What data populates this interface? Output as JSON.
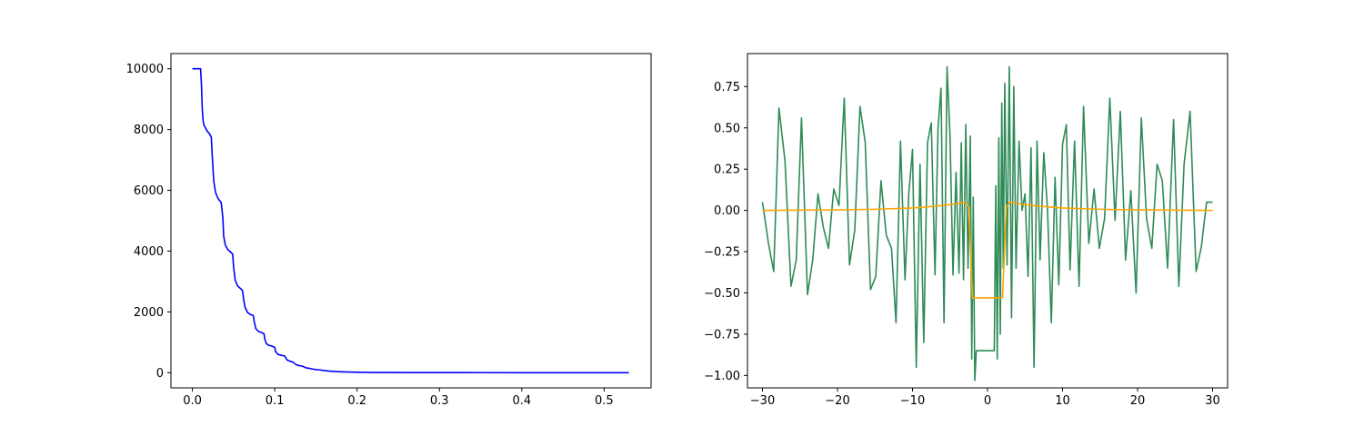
{
  "colors": {
    "left_line": "#0000ff",
    "right_line_main": "#2e8b57",
    "right_line_secondary": "#ffa500",
    "axes": "#000000",
    "background": "#ffffff"
  },
  "chart_data": [
    {
      "type": "line",
      "title": "",
      "xlabel": "",
      "ylabel": "",
      "xlim": [
        -0.026,
        0.557
      ],
      "ylim": [
        -500,
        10500
      ],
      "xticks": [
        0.0,
        0.1,
        0.2,
        0.3,
        0.4,
        0.5
      ],
      "xtick_labels": [
        "0.0",
        "0.1",
        "0.2",
        "0.3",
        "0.4",
        "0.5"
      ],
      "yticks": [
        0,
        2000,
        4000,
        6000,
        8000,
        10000
      ],
      "ytick_labels": [
        "0",
        "2000",
        "4000",
        "6000",
        "8000",
        "10000"
      ],
      "grid": false,
      "series": [
        {
          "color": "#0000ff",
          "x": [
            0.0,
            0.01,
            0.011,
            0.012,
            0.013,
            0.014,
            0.016,
            0.018,
            0.021,
            0.023,
            0.024,
            0.026,
            0.028,
            0.03,
            0.032,
            0.035,
            0.037,
            0.038,
            0.04,
            0.043,
            0.046,
            0.049,
            0.05,
            0.052,
            0.055,
            0.058,
            0.061,
            0.062,
            0.064,
            0.067,
            0.07,
            0.074,
            0.075,
            0.077,
            0.08,
            0.084,
            0.087,
            0.088,
            0.09,
            0.093,
            0.097,
            0.1,
            0.101,
            0.104,
            0.108,
            0.112,
            0.115,
            0.118,
            0.122,
            0.126,
            0.13,
            0.134,
            0.138,
            0.142,
            0.146,
            0.15,
            0.155,
            0.16,
            0.165,
            0.17,
            0.175,
            0.18,
            0.19,
            0.2,
            0.21,
            0.22,
            0.24,
            0.26,
            0.3,
            0.35,
            0.4,
            0.45,
            0.5,
            0.53
          ],
          "y": [
            10000,
            10000,
            9500,
            8700,
            8300,
            8150,
            8050,
            7950,
            7850,
            7750,
            7200,
            6300,
            5950,
            5800,
            5700,
            5600,
            5100,
            4500,
            4200,
            4050,
            3980,
            3900,
            3500,
            3050,
            2850,
            2780,
            2700,
            2450,
            2150,
            1980,
            1920,
            1880,
            1700,
            1450,
            1360,
            1320,
            1280,
            1100,
            950,
            900,
            870,
            830,
            700,
            600,
            570,
            550,
            420,
            380,
            350,
            260,
            230,
            210,
            160,
            140,
            120,
            100,
            90,
            70,
            55,
            45,
            35,
            30,
            20,
            15,
            10,
            7,
            5,
            3,
            2,
            1,
            0,
            0,
            0,
            0
          ]
        }
      ]
    },
    {
      "type": "line",
      "title": "",
      "xlabel": "",
      "ylabel": "",
      "xlim": [
        -32,
        32
      ],
      "ylim": [
        -1.075,
        0.95
      ],
      "xticks": [
        -30,
        -20,
        -10,
        0,
        10,
        20,
        30
      ],
      "xtick_labels": [
        "−30",
        "−20",
        "−10",
        "0",
        "10",
        "20",
        "30"
      ],
      "yticks": [
        -1.0,
        -0.75,
        -0.5,
        -0.25,
        0.0,
        0.25,
        0.5,
        0.75
      ],
      "ytick_labels": [
        "−1.00",
        "−0.75",
        "−0.50",
        "−0.25",
        "0.00",
        "0.25",
        "0.50",
        "0.75"
      ],
      "grid": false,
      "series": [
        {
          "color": "#2e8b57",
          "x": [
            -30.0,
            -29.2,
            -28.5,
            -27.8,
            -27.0,
            -26.2,
            -25.5,
            -24.8,
            -24.0,
            -23.3,
            -22.6,
            -21.9,
            -21.2,
            -20.5,
            -19.8,
            -19.1,
            -18.4,
            -17.7,
            -17.0,
            -16.3,
            -15.6,
            -14.9,
            -14.2,
            -13.5,
            -12.8,
            -12.2,
            -11.6,
            -11.0,
            -10.5,
            -10.0,
            -9.5,
            -9.0,
            -8.5,
            -8.0,
            -7.5,
            -7.0,
            -6.6,
            -6.2,
            -5.8,
            -5.4,
            -5.0,
            -4.6,
            -4.2,
            -3.8,
            -3.5,
            -3.2,
            -2.9,
            -2.6,
            -2.3,
            -2.1,
            -1.9,
            -1.7,
            -1.5,
            -1.3,
            -1.1,
            -0.9,
            -0.6,
            0.0,
            0.6,
            0.9,
            1.1,
            1.3,
            1.5,
            1.7,
            1.9,
            2.1,
            2.3,
            2.6,
            2.9,
            3.2,
            3.5,
            3.8,
            4.2,
            4.6,
            5.0,
            5.4,
            5.8,
            6.2,
            6.6,
            7.0,
            7.5,
            8.0,
            8.5,
            9.0,
            9.5,
            10.0,
            10.5,
            11.0,
            11.6,
            12.2,
            12.8,
            13.5,
            14.2,
            14.9,
            15.6,
            16.3,
            17.0,
            17.7,
            18.4,
            19.1,
            19.8,
            20.5,
            21.2,
            21.9,
            22.6,
            23.3,
            24.0,
            24.8,
            25.5,
            26.2,
            27.0,
            27.8,
            28.5,
            29.2,
            30.0
          ],
          "y": [
            0.05,
            -0.2,
            -0.37,
            0.62,
            0.3,
            -0.46,
            -0.3,
            0.56,
            -0.51,
            -0.3,
            0.1,
            -0.1,
            -0.23,
            0.13,
            0.03,
            0.68,
            -0.33,
            -0.12,
            0.63,
            0.41,
            -0.48,
            -0.4,
            0.18,
            -0.15,
            -0.23,
            -0.68,
            0.42,
            -0.42,
            0.1,
            0.37,
            -0.95,
            0.28,
            -0.8,
            0.41,
            0.53,
            -0.39,
            0.5,
            0.74,
            -0.68,
            0.87,
            0.45,
            -0.39,
            0.23,
            -0.38,
            0.41,
            -0.42,
            0.52,
            -0.35,
            0.45,
            -0.9,
            0.08,
            -1.03,
            -0.85,
            -0.85,
            -0.85,
            -0.85,
            -0.85,
            -0.85,
            -0.85,
            -0.85,
            0.15,
            -0.9,
            0.44,
            -0.75,
            0.65,
            -0.35,
            0.77,
            -0.33,
            0.87,
            -0.65,
            0.75,
            -0.35,
            0.42,
            0.0,
            0.1,
            -0.4,
            0.38,
            -0.95,
            0.42,
            -0.3,
            0.35,
            0.0,
            -0.68,
            0.2,
            -0.45,
            0.4,
            0.52,
            -0.36,
            0.42,
            -0.46,
            0.63,
            -0.2,
            0.13,
            -0.23,
            -0.05,
            0.68,
            -0.06,
            0.6,
            -0.3,
            0.12,
            -0.5,
            0.56,
            -0.05,
            -0.23,
            0.28,
            0.18,
            -0.35,
            0.55,
            -0.46,
            0.28,
            0.6,
            -0.37,
            -0.22,
            0.05,
            0.05
          ]
        },
        {
          "color": "#ffa500",
          "x": [
            -30,
            -25,
            -20,
            -15,
            -10,
            -7,
            -5,
            -4,
            -3,
            -2.5,
            -2.0,
            -1.5,
            0.0,
            1.5,
            2.0,
            2.5,
            3,
            4,
            5,
            7,
            10,
            15,
            20,
            25,
            30
          ],
          "y": [
            0.0,
            0.002,
            0.003,
            0.007,
            0.015,
            0.025,
            0.035,
            0.042,
            0.05,
            0.02,
            -0.53,
            -0.53,
            -0.53,
            -0.53,
            -0.53,
            0.02,
            0.05,
            0.042,
            0.035,
            0.025,
            0.015,
            0.007,
            0.003,
            0.002,
            0.0
          ]
        }
      ]
    }
  ]
}
